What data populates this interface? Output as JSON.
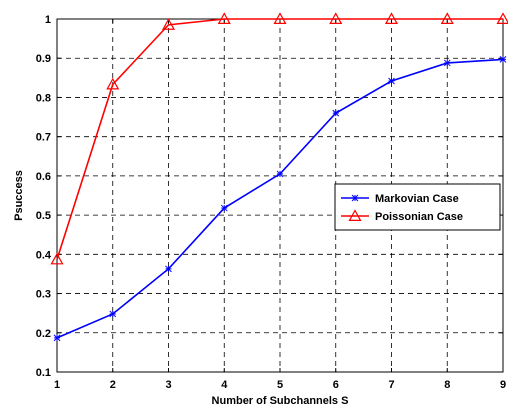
{
  "chart_data": {
    "type": "line",
    "title": "",
    "xlabel": "Number of Subchannels S",
    "ylabel": "Psuccess",
    "x": [
      1,
      2,
      3,
      4,
      5,
      6,
      7,
      8,
      9
    ],
    "xlim": [
      1,
      9
    ],
    "ylim": [
      0.1,
      1
    ],
    "xticks": [
      "1",
      "2",
      "3",
      "4",
      "5",
      "6",
      "7",
      "8",
      "9"
    ],
    "yticks": [
      "0.1",
      "0.2",
      "0.3",
      "0.4",
      "0.5",
      "0.6",
      "0.7",
      "0.8",
      "0.9",
      "1"
    ],
    "grid": true,
    "legend_position": "center-right",
    "series": [
      {
        "name": "Markovian Case",
        "color": "#0000ff",
        "marker": "star",
        "values": [
          0.187,
          0.248,
          0.363,
          0.518,
          0.605,
          0.76,
          0.842,
          0.888,
          0.897
        ]
      },
      {
        "name": "Poissonian Case",
        "color": "#ff0000",
        "marker": "triangle",
        "values": [
          0.387,
          0.833,
          0.985,
          1.0,
          1.0,
          1.0,
          1.0,
          1.0,
          1.0
        ]
      }
    ]
  }
}
